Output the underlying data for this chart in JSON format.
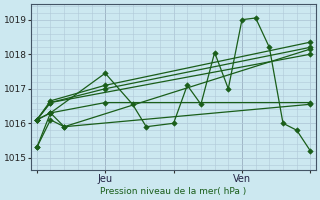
{
  "bg_color": "#cce8f0",
  "grid_color": "#b0c8d8",
  "line_color": "#1a5e1a",
  "marker_color": "#1a5e1a",
  "xlabel_text": "Pression niveau de la mer( hPa )",
  "xticklabels": [
    "",
    "Jeu",
    "",
    "Ven",
    ""
  ],
  "xtick_positions": [
    0.0,
    0.25,
    0.5,
    0.75,
    1.0
  ],
  "yticks": [
    1015,
    1016,
    1017,
    1018,
    1019
  ],
  "ylim": [
    1014.65,
    1019.45
  ],
  "xlim": [
    -0.02,
    1.02
  ],
  "vline_positions": [
    0.25,
    0.75
  ],
  "series": [
    {
      "x": [
        0.0,
        0.05,
        0.1,
        1.0
      ],
      "y": [
        1015.3,
        1016.1,
        1015.9,
        1018.15
      ]
    },
    {
      "x": [
        0.0,
        0.05,
        1.0
      ],
      "y": [
        1016.1,
        1016.6,
        1018.0
      ]
    },
    {
      "x": [
        0.0,
        0.05,
        0.25,
        1.0
      ],
      "y": [
        1016.1,
        1016.6,
        1017.0,
        1018.2
      ]
    },
    {
      "x": [
        0.0,
        0.05,
        0.25,
        1.0
      ],
      "y": [
        1016.1,
        1016.65,
        1017.1,
        1018.35
      ]
    },
    {
      "x": [
        0.0,
        0.05,
        0.25,
        1.0
      ],
      "y": [
        1016.1,
        1016.3,
        1016.6,
        1016.6
      ]
    },
    {
      "x": [
        0.0,
        0.05,
        0.1,
        1.0
      ],
      "y": [
        1016.1,
        1016.3,
        1015.9,
        1016.55
      ]
    },
    {
      "x": [
        0.0,
        0.05,
        0.25,
        0.35,
        0.4,
        0.5,
        0.55,
        0.6,
        0.65,
        0.7,
        0.75,
        0.8,
        0.85,
        0.9,
        0.95,
        1.0
      ],
      "y": [
        1015.3,
        1016.3,
        1017.45,
        1016.55,
        1015.9,
        1016.0,
        1017.1,
        1016.55,
        1018.05,
        1017.0,
        1019.0,
        1019.05,
        1018.2,
        1016.0,
        1015.8,
        1015.2
      ]
    }
  ]
}
